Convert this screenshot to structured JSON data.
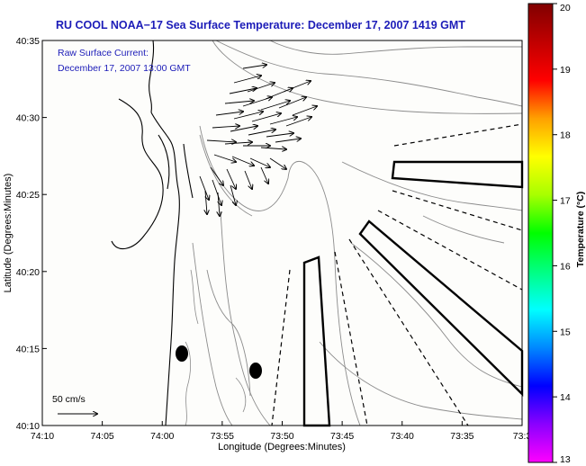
{
  "title": "RU COOL  NOAA−17  Sea Surface Temperature:  December 17, 2007 1419 GMT",
  "current_note": {
    "line1": "Raw Surface Current:",
    "line2": "December 17, 2007 13:00 GMT"
  },
  "scale_label": "50 cm/s",
  "axes": {
    "xlabel": "Longitude (Degrees:Minutes)",
    "ylabel": "Latitude (Degrees:Minutes)",
    "xticks": [
      "74:10",
      "74:05",
      "74:00",
      "73:55",
      "73:50",
      "73:45",
      "73:40",
      "73:35",
      "73:3"
    ],
    "yticks": [
      "40:35",
      "40:30",
      "40:25",
      "40:20",
      "40:15",
      "40:10"
    ]
  },
  "colorbar": {
    "title": "Temperature (°C)",
    "ticks": [
      "20",
      "19",
      "18",
      "17",
      "16",
      "15",
      "14",
      "13"
    ],
    "colors": [
      "#ff00ff",
      "#8a00ff",
      "#0000ff",
      "#0088ff",
      "#00ffff",
      "#00ff80",
      "#00ff00",
      "#a8ff00",
      "#ffff00",
      "#ffa000",
      "#ff0000",
      "#c00000",
      "#800000"
    ]
  },
  "legend_colors": {
    "title": "#1c1cb8",
    "land": "#ffffff",
    "map_bg": "#fdfdfb",
    "contour": "#8c8c8c"
  }
}
